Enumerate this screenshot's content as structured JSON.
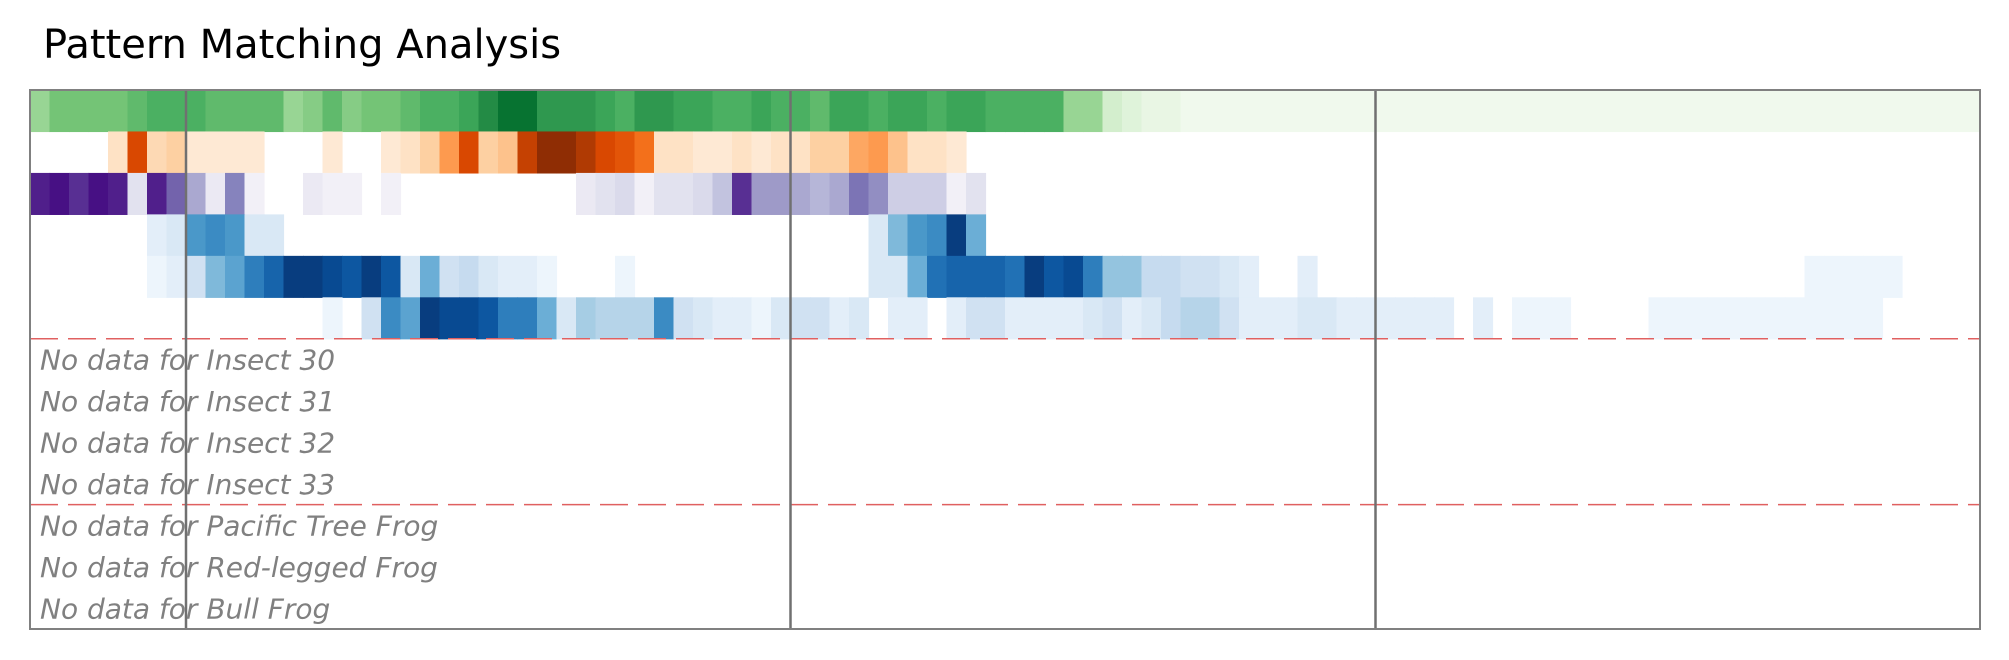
{
  "chart_data": {
    "type": "heatmap",
    "title": "Pattern Matching Analysis",
    "n_columns": 100,
    "grid": false,
    "palette": {
      "greens": [
        "#f7fcf5",
        "#e5f5e0",
        "#c7e9c0",
        "#a1d99b",
        "#74c476",
        "#41ab5d",
        "#238b45",
        "#006d2c",
        "#00441b"
      ],
      "oranges": [
        "#fff5eb",
        "#fee6ce",
        "#fdd0a2",
        "#fdae6b",
        "#fd8d3c",
        "#f16913",
        "#d94801",
        "#a63603",
        "#7f2704"
      ],
      "purples": [
        "#fcfbfd",
        "#efedf5",
        "#dadaeb",
        "#bcbddc",
        "#9e9ac8",
        "#807dba",
        "#6a51a3",
        "#54278f",
        "#3f007d"
      ],
      "blues": [
        "#f7fbff",
        "#deebf7",
        "#c6dbef",
        "#9ecae1",
        "#6baed6",
        "#4292c6",
        "#2171b5",
        "#08519c",
        "#08306b"
      ]
    },
    "rows": [
      {
        "palette": "greens",
        "values": [
          0.4,
          0.5,
          0.5,
          0.5,
          0.5,
          0.55,
          0.6,
          0.6,
          0.6,
          0.55,
          0.55,
          0.55,
          0.55,
          0.4,
          0.45,
          0.55,
          0.45,
          0.5,
          0.5,
          0.55,
          0.6,
          0.6,
          0.65,
          0.75,
          0.85,
          0.85,
          0.7,
          0.7,
          0.7,
          0.65,
          0.6,
          0.7,
          0.7,
          0.65,
          0.65,
          0.6,
          0.6,
          0.65,
          0.6,
          0.6,
          0.55,
          0.65,
          0.65,
          0.6,
          0.65,
          0.65,
          0.6,
          0.65,
          0.65,
          0.6,
          0.6,
          0.6,
          0.6,
          0.4,
          0.4,
          0.2,
          0.15,
          0.1,
          0.1,
          0.05,
          0.05,
          0.05,
          0.05,
          0.05,
          0.05,
          0.05,
          0.05,
          0.05,
          0.05,
          0.05,
          0.05,
          0.05,
          0.05,
          0.05,
          0.05,
          0.05,
          0.05,
          0.05,
          0.05,
          0.05,
          0.05,
          0.05,
          0.05,
          0.05,
          0.05,
          0.05,
          0.05,
          0.05,
          0.05,
          0.05,
          0.05,
          0.05,
          0.05,
          0.05,
          0.05,
          0.05,
          0.05,
          0.05,
          0.05,
          0.05
        ]
      },
      {
        "palette": "oranges",
        "values": [
          0,
          0,
          0,
          0,
          0.15,
          0.75,
          0.2,
          0.25,
          0.1,
          0.1,
          0.1,
          0.1,
          0,
          0,
          0,
          0.1,
          0,
          0,
          0.1,
          0.15,
          0.25,
          0.45,
          0.75,
          0.25,
          0.3,
          0.8,
          0.95,
          0.95,
          0.85,
          0.75,
          0.7,
          0.6,
          0.15,
          0.15,
          0.1,
          0.1,
          0.15,
          0.1,
          0.15,
          0.15,
          0.25,
          0.25,
          0.4,
          0.45,
          0.3,
          0.15,
          0.15,
          0.1,
          0,
          0,
          0,
          0,
          0,
          0,
          0,
          0,
          0,
          0,
          0,
          0,
          0,
          0,
          0,
          0,
          0,
          0,
          0,
          0,
          0,
          0,
          0,
          0,
          0,
          0,
          0,
          0,
          0,
          0,
          0,
          0,
          0,
          0,
          0,
          0,
          0,
          0,
          0,
          0,
          0,
          0,
          0,
          0,
          0,
          0,
          0,
          0,
          0,
          0,
          0,
          0
        ]
      },
      {
        "palette": "purples",
        "values": [
          0.9,
          0.95,
          0.85,
          0.95,
          0.9,
          0.2,
          0.9,
          0.7,
          0.45,
          0.15,
          0.6,
          0.1,
          0,
          0,
          0.15,
          0.1,
          0.1,
          0,
          0.1,
          0,
          0,
          0,
          0,
          0,
          0,
          0,
          0,
          0,
          0.15,
          0.2,
          0.25,
          0.1,
          0.2,
          0.2,
          0.25,
          0.35,
          0.85,
          0.5,
          0.5,
          0.45,
          0.4,
          0.45,
          0.65,
          0.55,
          0.3,
          0.3,
          0.3,
          0.1,
          0.2,
          0,
          0,
          0,
          0,
          0,
          0,
          0,
          0,
          0,
          0,
          0,
          0,
          0,
          0,
          0,
          0,
          0,
          0,
          0,
          0,
          0,
          0,
          0,
          0,
          0,
          0,
          0,
          0,
          0,
          0,
          0,
          0,
          0,
          0,
          0,
          0,
          0,
          0,
          0,
          0,
          0,
          0,
          0,
          0,
          0,
          0,
          0,
          0,
          0,
          0,
          0
        ]
      },
      {
        "palette": "blues",
        "values": [
          0,
          0,
          0,
          0,
          0,
          0,
          0.1,
          0.15,
          0.6,
          0.65,
          0.6,
          0.15,
          0.15,
          0,
          0,
          0,
          0,
          0,
          0,
          0,
          0,
          0,
          0,
          0,
          0,
          0,
          0,
          0,
          0,
          0,
          0,
          0,
          0,
          0,
          0,
          0,
          0,
          0,
          0,
          0,
          0,
          0,
          0,
          0.15,
          0.45,
          0.6,
          0.65,
          0.95,
          0.5,
          0,
          0,
          0,
          0,
          0,
          0,
          0,
          0,
          0,
          0,
          0,
          0,
          0,
          0,
          0,
          0,
          0,
          0,
          0,
          0,
          0,
          0,
          0,
          0,
          0,
          0,
          0,
          0,
          0,
          0,
          0,
          0,
          0,
          0,
          0,
          0,
          0,
          0,
          0,
          0,
          0,
          0,
          0,
          0,
          0,
          0,
          0,
          0,
          0,
          0,
          0
        ]
      },
      {
        "palette": "blues",
        "values": [
          0,
          0,
          0,
          0,
          0,
          0,
          0.05,
          0.1,
          0.2,
          0.45,
          0.55,
          0.7,
          0.8,
          0.95,
          0.95,
          0.9,
          0.85,
          0.95,
          0.85,
          0.15,
          0.5,
          0.2,
          0.25,
          0.15,
          0.1,
          0.1,
          0.05,
          0,
          0,
          0,
          0.05,
          0,
          0,
          0,
          0,
          0,
          0,
          0,
          0,
          0,
          0,
          0,
          0,
          0.15,
          0.15,
          0.5,
          0.75,
          0.8,
          0.8,
          0.8,
          0.75,
          0.95,
          0.85,
          0.9,
          0.7,
          0.4,
          0.4,
          0.25,
          0.25,
          0.2,
          0.2,
          0.15,
          0.1,
          0,
          0,
          0.1,
          0,
          0,
          0,
          0,
          0,
          0,
          0,
          0,
          0,
          0,
          0,
          0,
          0,
          0,
          0,
          0,
          0,
          0,
          0,
          0,
          0,
          0,
          0,
          0,
          0,
          0.05,
          0.05,
          0.05,
          0.05,
          0.05,
          0,
          0,
          0,
          0
        ]
      },
      {
        "palette": "blues",
        "values": [
          0,
          0,
          0,
          0,
          0,
          0,
          0,
          0,
          0,
          0,
          0,
          0,
          0,
          0,
          0,
          0.05,
          0,
          0.2,
          0.65,
          0.55,
          0.95,
          0.9,
          0.9,
          0.85,
          0.7,
          0.7,
          0.5,
          0.15,
          0.35,
          0.3,
          0.3,
          0.3,
          0.65,
          0.2,
          0.15,
          0.1,
          0.1,
          0.05,
          0.15,
          0.2,
          0.2,
          0.1,
          0.15,
          0,
          0.1,
          0.1,
          0,
          0.1,
          0.2,
          0.2,
          0.1,
          0.1,
          0.1,
          0.1,
          0.15,
          0.2,
          0.1,
          0.15,
          0.25,
          0.3,
          0.3,
          0.2,
          0.1,
          0.1,
          0.1,
          0.15,
          0.15,
          0.1,
          0.1,
          0.1,
          0.1,
          0.1,
          0.1,
          0,
          0.1,
          0,
          0.05,
          0.05,
          0.05,
          0,
          0,
          0,
          0,
          0.05,
          0.05,
          0.05,
          0.05,
          0.05,
          0.05,
          0.05,
          0.05,
          0.05,
          0.05,
          0.05,
          0.05,
          0,
          0,
          0,
          0,
          0
        ]
      }
    ],
    "empty_rows": [
      "No data for Insect 30",
      "No data for Insect 31",
      "No data for Insect 32",
      "No data for Insect 33",
      "No data for Pacific Tree Frog",
      "No data for Red-legged Frog",
      "No data for Bull Frog"
    ],
    "vertical_dividers_at_column": [
      8,
      39,
      69
    ],
    "group_separators_after_row": [
      6,
      10
    ]
  }
}
